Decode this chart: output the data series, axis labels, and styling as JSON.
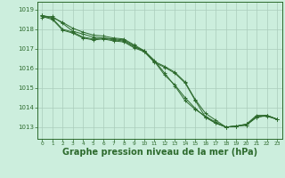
{
  "background_color": "#cceedd",
  "grid_color": "#aaccbb",
  "line_color": "#2d6a2d",
  "xlabel": "Graphe pression niveau de la mer (hPa)",
  "xlabel_fontsize": 7.0,
  "ylabel_ticks": [
    1013,
    1014,
    1015,
    1016,
    1017,
    1018,
    1019
  ],
  "xticks": [
    0,
    1,
    2,
    3,
    4,
    5,
    6,
    7,
    8,
    9,
    10,
    11,
    12,
    13,
    14,
    15,
    16,
    17,
    18,
    19,
    20,
    21,
    22,
    23
  ],
  "ylim": [
    1012.4,
    1019.4
  ],
  "xlim": [
    -0.5,
    23.5
  ],
  "series": [
    [
      1018.6,
      1018.65,
      1018.3,
      1017.9,
      1017.75,
      1017.6,
      1017.55,
      1017.5,
      1017.45,
      1017.15,
      1016.85,
      1016.3,
      1016.05,
      1015.75,
      1015.25,
      1014.35,
      1013.5,
      1013.2,
      1013.0,
      1013.05,
      1013.1,
      1013.55,
      1013.55,
      1013.4
    ],
    [
      1018.65,
      1018.5,
      1017.95,
      1017.8,
      1017.55,
      1017.45,
      1017.5,
      1017.4,
      1017.35,
      1017.05,
      1016.85,
      1016.35,
      1015.65,
      1015.15,
      1014.5,
      1013.95,
      1013.5,
      1013.2,
      1013.0,
      1013.05,
      1013.1,
      1013.5,
      1013.6,
      1013.4
    ],
    [
      1018.7,
      1018.6,
      1018.35,
      1018.05,
      1017.85,
      1017.7,
      1017.65,
      1017.55,
      1017.5,
      1017.2,
      1016.9,
      1016.35,
      1016.1,
      1015.8,
      1015.3,
      1014.4,
      1013.7,
      1013.35,
      1013.0,
      1013.05,
      1013.15,
      1013.6,
      1013.6,
      1013.4
    ],
    [
      1018.7,
      1018.55,
      1018.0,
      1017.85,
      1017.6,
      1017.5,
      1017.55,
      1017.45,
      1017.4,
      1017.1,
      1016.9,
      1016.4,
      1015.75,
      1015.1,
      1014.35,
      1013.9,
      1013.55,
      1013.25,
      1013.0,
      1013.05,
      1013.15,
      1013.5,
      1013.6,
      1013.4
    ]
  ]
}
